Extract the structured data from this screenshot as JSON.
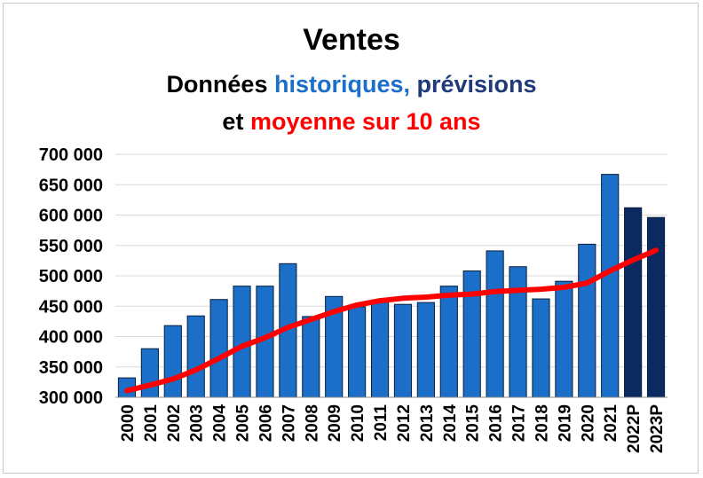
{
  "chart_data": {
    "type": "bar",
    "title": "Ventes",
    "subtitle_line1": {
      "part1": "Données ",
      "part2": "historiques,",
      "part3": " prévisions"
    },
    "subtitle_line2": {
      "part1": "et ",
      "part2": "moyenne sur 10 ans"
    },
    "colors": {
      "historical": "#1b6fc8",
      "forecast": "#0c2a62",
      "moving_average": "#ff0000",
      "subtitle_black": "#000000",
      "subtitle_blue": "#1b6fc8",
      "subtitle_navy": "#1f3a7a",
      "subtitle_red": "#ff0000"
    },
    "categories": [
      "2000",
      "2001",
      "2002",
      "2003",
      "2004",
      "2005",
      "2006",
      "2007",
      "2008",
      "2009",
      "2010",
      "2011",
      "2012",
      "2013",
      "2014",
      "2015",
      "2016",
      "2017",
      "2018",
      "2019",
      "2020",
      "2021",
      "2022P",
      "2023P"
    ],
    "series": [
      {
        "kind": "bar",
        "values": [
          332000,
          380000,
          418000,
          434000,
          461000,
          483000,
          483000,
          520000,
          433000,
          466000,
          449000,
          460000,
          453000,
          456000,
          483000,
          508000,
          541000,
          515000,
          462000,
          491000,
          552000,
          667000,
          612000,
          596000
        ],
        "forecast_flags": [
          false,
          false,
          false,
          false,
          false,
          false,
          false,
          false,
          false,
          false,
          false,
          false,
          false,
          false,
          false,
          false,
          false,
          false,
          false,
          false,
          false,
          false,
          true,
          true
        ]
      },
      {
        "kind": "line",
        "values": [
          311000,
          320000,
          330000,
          345000,
          364000,
          384000,
          398000,
          415000,
          428000,
          441000,
          452000,
          459000,
          463000,
          465000,
          468000,
          470000,
          474000,
          476000,
          478000,
          481000,
          488000,
          508000,
          526000,
          542000
        ]
      }
    ],
    "ylim": [
      300000,
      700000
    ],
    "y_ticks": [
      300000,
      350000,
      400000,
      450000,
      500000,
      550000,
      600000,
      650000,
      700000
    ],
    "y_tick_labels": [
      "300 000",
      "350 000",
      "400 000",
      "450 000",
      "500 000",
      "550 000",
      "600 000",
      "650 000",
      "700 000"
    ],
    "grid": true
  }
}
